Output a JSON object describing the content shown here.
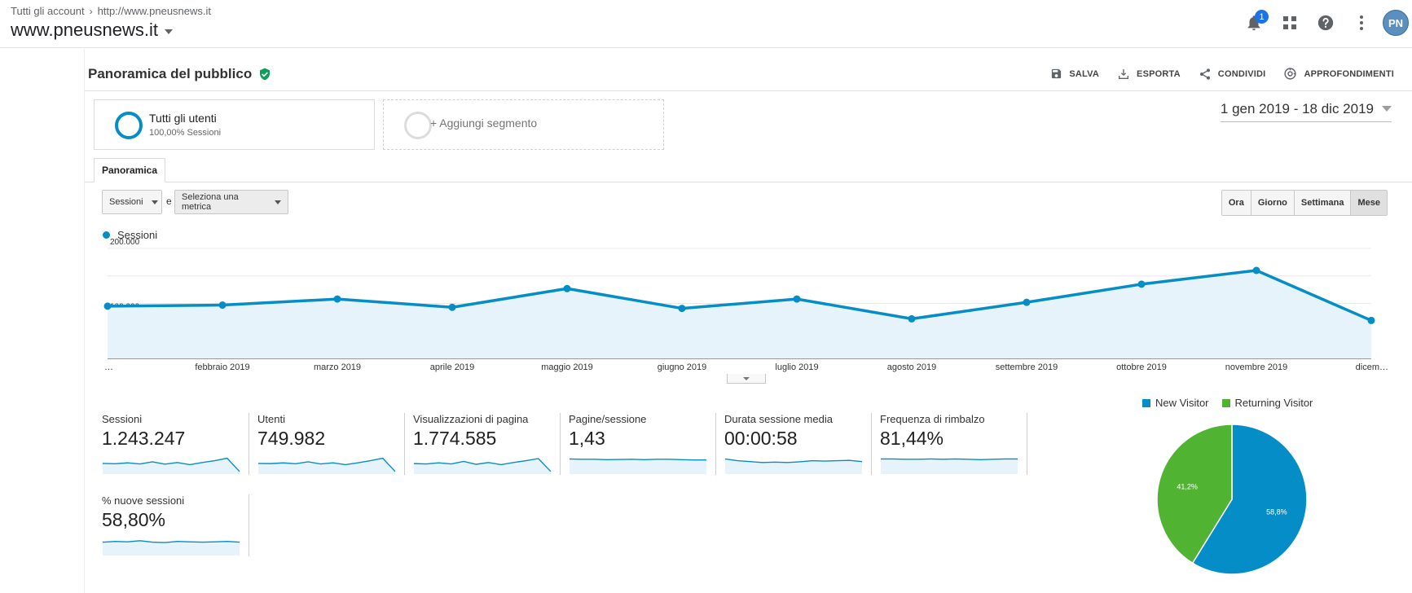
{
  "header": {
    "breadcrumb_root": "Tutti gli account",
    "breadcrumb_current": "http://www.pneusnews.it",
    "property_name": "www.pneusnews.it",
    "notification_count": "1",
    "avatar_initials": "PN"
  },
  "report": {
    "title": "Panoramica del pubblico",
    "actions": [
      {
        "label": "SALVA",
        "icon": "save-icon"
      },
      {
        "label": "ESPORTA",
        "icon": "export-icon"
      },
      {
        "label": "CONDIVIDI",
        "icon": "share-icon"
      },
      {
        "label": "APPROFONDIMENTI",
        "icon": "insights-icon"
      }
    ],
    "date_range": "1 gen 2019 - 18 dic 2019"
  },
  "segments": {
    "active_name": "Tutti gli utenti",
    "active_sub": "100,00% Sessioni",
    "add_label": "+ Aggiungi segmento"
  },
  "tabs": {
    "overview": "Panoramica"
  },
  "controls": {
    "metric_primary": "Sessioni",
    "and_label": "e",
    "metric_secondary": "Seleziona una metrica",
    "granularity": [
      {
        "label": "Ora",
        "active": false
      },
      {
        "label": "Giorno",
        "active": false
      },
      {
        "label": "Settimana",
        "active": false
      },
      {
        "label": "Mese",
        "active": true
      }
    ]
  },
  "chart_data": [
    {
      "type": "area",
      "legend": [
        "Sessioni"
      ],
      "series": [
        {
          "name": "Sessioni",
          "color": "#058dc7",
          "values": [
            95000,
            97000,
            108000,
            93000,
            127000,
            91000,
            108000,
            72000,
            102000,
            135000,
            160000,
            69000
          ]
        }
      ],
      "categories": [
        "…",
        "febbraio 2019",
        "marzo 2019",
        "aprile 2019",
        "maggio 2019",
        "giugno 2019",
        "luglio 2019",
        "agosto 2019",
        "settembre 2019",
        "ottobre 2019",
        "novembre 2019",
        "dicem…"
      ],
      "y_ticks": [
        "200.000",
        "100.000"
      ],
      "ylim": [
        0,
        200000
      ],
      "grid": true
    },
    {
      "type": "pie",
      "legend_position": "top",
      "slices": [
        {
          "label": "New Visitor",
          "value": 58.8,
          "display": "58,8%",
          "color": "#058dc7"
        },
        {
          "label": "Returning Visitor",
          "value": 41.2,
          "display": "41,2%",
          "color": "#50b432"
        }
      ]
    }
  ],
  "metrics": [
    {
      "label": "Sessioni",
      "value": "1.243.247",
      "trend": [
        0.45,
        0.47,
        0.42,
        0.48,
        0.36,
        0.49,
        0.4,
        0.52,
        0.4,
        0.3,
        0.16,
        0.9
      ]
    },
    {
      "label": "Utenti",
      "value": "749.982",
      "trend": [
        0.45,
        0.46,
        0.42,
        0.47,
        0.36,
        0.48,
        0.42,
        0.52,
        0.42,
        0.3,
        0.16,
        0.9
      ]
    },
    {
      "label": "Visualizzazioni di pagina",
      "value": "1.774.585",
      "trend": [
        0.46,
        0.48,
        0.42,
        0.48,
        0.34,
        0.5,
        0.4,
        0.52,
        0.4,
        0.3,
        0.18,
        0.9
      ]
    },
    {
      "label": "Pagine/sessione",
      "value": "1,43",
      "trend": [
        0.2,
        0.22,
        0.22,
        0.24,
        0.23,
        0.22,
        0.24,
        0.22,
        0.22,
        0.24,
        0.26,
        0.26
      ]
    },
    {
      "label": "Durata sessione media",
      "value": "00:00:58",
      "trend": [
        0.2,
        0.3,
        0.35,
        0.4,
        0.38,
        0.4,
        0.36,
        0.3,
        0.32,
        0.3,
        0.28,
        0.35
      ]
    },
    {
      "label": "Frequenza di rimbalzo",
      "value": "81,44%",
      "trend": [
        0.2,
        0.2,
        0.22,
        0.22,
        0.2,
        0.22,
        0.2,
        0.22,
        0.24,
        0.22,
        0.2,
        0.2
      ]
    },
    {
      "label": "% nuove sessioni",
      "value": "58,80%",
      "trend": [
        0.3,
        0.26,
        0.28,
        0.22,
        0.3,
        0.32,
        0.26,
        0.28,
        0.3,
        0.28,
        0.26,
        0.3
      ]
    }
  ]
}
